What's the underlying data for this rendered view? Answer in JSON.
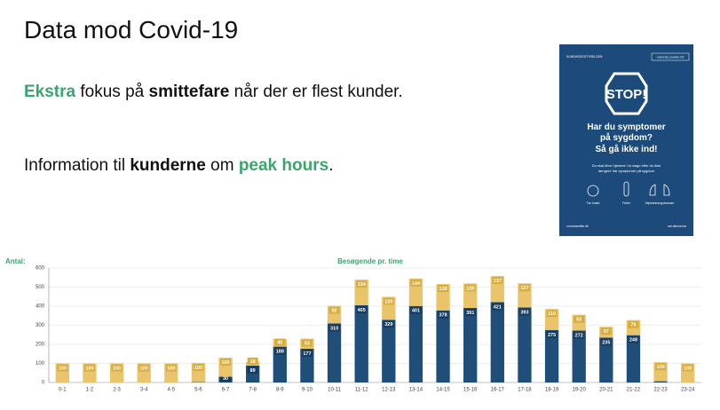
{
  "slide": {
    "title": "Data mod Covid-19",
    "paragraphs": [
      [
        {
          "text": "Ekstra",
          "bold": true,
          "color": "#3aa56e"
        },
        {
          "text": " fokus på "
        },
        {
          "text": "smittefare",
          "bold": true
        },
        {
          "text": " når der er flest kunder."
        }
      ],
      [
        {
          "text": "Information til "
        },
        {
          "text": "kunderne",
          "bold": true
        },
        {
          "text": " om "
        },
        {
          "text": "peak hours",
          "bold": true,
          "color": "#3aa56e"
        },
        {
          "text": "."
        }
      ]
    ]
  },
  "poster": {
    "authority": "SUNDHEDSSTYRELSEN",
    "tag": "corona | covid-19",
    "stop": "STOP!",
    "headline": [
      "Har du symptomer",
      "på sygdom?",
      "Så gå ikke ind!"
    ],
    "body": [
      "Du skal blive hjemme i to døgn efter du ikke",
      "længere har symptomer på sygdom"
    ],
    "symptoms": [
      "Tør hoste",
      "Feber",
      "Vejrtrækningsbesvær"
    ],
    "footer_left": "coronasmitte.dk",
    "footer_right": "sst.dk/corona"
  },
  "chart_data": {
    "type": "bar",
    "stacked": true,
    "title": "Besøgende pr. time",
    "y_label": "Antal:",
    "categories": [
      "0-1",
      "1-2",
      "2-3",
      "3-4",
      "4-5",
      "5-6",
      "6-7",
      "7-8",
      "8-9",
      "9-10",
      "10-11",
      "11-12",
      "12-13",
      "13-14",
      "14-15",
      "15-16",
      "16-17",
      "17-18",
      "18-19",
      "19-20",
      "20-21",
      "21-22",
      "22-23",
      "23-24"
    ],
    "series": [
      {
        "color": "#1f4e79",
        "values": [
          0,
          0,
          0,
          0,
          0,
          2,
          30,
          89,
          188,
          177,
          310,
          405,
          329,
          401,
          378,
          391,
          421,
          393,
          275,
          272,
          235,
          248,
          6,
          0
        ]
      },
      {
        "color": "#e9c46a",
        "values": [
          100,
          100,
          100,
          100,
          100,
          100,
          100,
          18,
          40,
          53,
          92,
          134,
          120,
          144,
          138,
          128,
          137,
          127,
          110,
          83,
          57,
          79,
          100,
          100
        ]
      }
    ],
    "ylim": [
      0,
      600
    ],
    "yticks": [
      0,
      100,
      200,
      300,
      400,
      500,
      600
    ],
    "grid": true
  }
}
